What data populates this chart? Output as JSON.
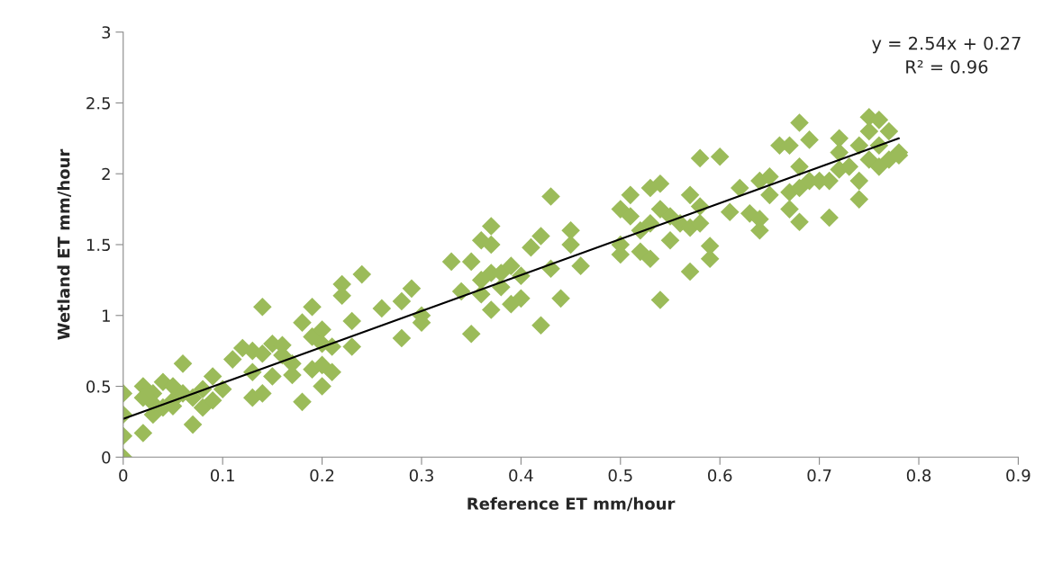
{
  "chart_data": {
    "type": "scatter",
    "xlabel": "Reference ET mm/hour",
    "ylabel": "Wetland ET mm/hour",
    "xlim": [
      0,
      0.9
    ],
    "xticks": [
      0,
      0.1,
      0.2,
      0.3,
      0.4,
      0.5,
      0.6,
      0.7,
      0.8,
      0.9
    ],
    "ylim": [
      0,
      3
    ],
    "yticks": [
      0,
      0.5,
      1,
      1.5,
      2,
      2.5,
      3
    ],
    "grid": false,
    "legend": false,
    "annotations": [
      "y = 2.54x + 0.27\nR² = 0.96"
    ],
    "series": [
      {
        "type": "scatter",
        "marker": "diamond",
        "color": "#9bbb59",
        "x": [
          0,
          0,
          0,
          0,
          0.02,
          0.02,
          0.02,
          0.03,
          0.03,
          0.03,
          0.04,
          0.04,
          0.05,
          0.05,
          0.05,
          0.06,
          0.06,
          0.07,
          0.07,
          0.08,
          0.08,
          0.09,
          0.09,
          0.1,
          0.11,
          0.12,
          0.13,
          0.13,
          0.13,
          0.14,
          0.14,
          0.14,
          0.15,
          0.15,
          0.16,
          0.16,
          0.17,
          0.17,
          0.18,
          0.18,
          0.19,
          0.19,
          0.19,
          0.2,
          0.2,
          0.2,
          0.2,
          0.21,
          0.21,
          0.22,
          0.22,
          0.23,
          0.23,
          0.24,
          0.26,
          0.28,
          0.28,
          0.29,
          0.3,
          0.3,
          0.33,
          0.34,
          0.35,
          0.35,
          0.36,
          0.36,
          0.36,
          0.37,
          0.37,
          0.37,
          0.37,
          0.38,
          0.38,
          0.39,
          0.39,
          0.4,
          0.4,
          0.41,
          0.42,
          0.42,
          0.43,
          0.43,
          0.44,
          0.45,
          0.45,
          0.46,
          0.5,
          0.5,
          0.5,
          0.51,
          0.51,
          0.52,
          0.52,
          0.53,
          0.53,
          0.53,
          0.54,
          0.54,
          0.54,
          0.55,
          0.55,
          0.56,
          0.57,
          0.57,
          0.57,
          0.58,
          0.58,
          0.58,
          0.59,
          0.59,
          0.6,
          0.61,
          0.62,
          0.63,
          0.64,
          0.64,
          0.64,
          0.65,
          0.65,
          0.66,
          0.67,
          0.67,
          0.67,
          0.68,
          0.68,
          0.68,
          0.68,
          0.69,
          0.69,
          0.7,
          0.71,
          0.71,
          0.72,
          0.72,
          0.72,
          0.73,
          0.74,
          0.74,
          0.74,
          0.75,
          0.75,
          0.75,
          0.76,
          0.76,
          0.76,
          0.77,
          0.77,
          0.78,
          0.78
        ],
        "values": [
          0,
          0.15,
          0.3,
          0.45,
          0.17,
          0.5,
          0.42,
          0.3,
          0.45,
          0.38,
          0.53,
          0.35,
          0.5,
          0.4,
          0.36,
          0.66,
          0.45,
          0.23,
          0.42,
          0.35,
          0.48,
          0.57,
          0.4,
          0.48,
          0.69,
          0.77,
          0.75,
          0.6,
          0.42,
          1.06,
          0.45,
          0.73,
          0.57,
          0.8,
          0.79,
          0.72,
          0.58,
          0.66,
          0.39,
          0.95,
          1.06,
          0.85,
          0.62,
          0.9,
          0.5,
          0.65,
          0.8,
          0.6,
          0.78,
          1.22,
          1.14,
          0.96,
          0.78,
          1.29,
          1.05,
          0.84,
          1.1,
          1.19,
          0.95,
          1.0,
          1.38,
          1.17,
          0.87,
          1.38,
          1.53,
          1.25,
          1.15,
          1.63,
          1.04,
          1.5,
          1.3,
          1.2,
          1.3,
          1.08,
          1.35,
          1.12,
          1.28,
          1.48,
          1.56,
          0.93,
          1.84,
          1.33,
          1.12,
          1.6,
          1.5,
          1.35,
          1.75,
          1.5,
          1.43,
          1.85,
          1.7,
          1.45,
          1.6,
          1.9,
          1.4,
          1.65,
          1.93,
          1.11,
          1.75,
          1.53,
          1.7,
          1.65,
          1.85,
          1.31,
          1.62,
          2.11,
          1.77,
          1.65,
          1.4,
          1.49,
          2.12,
          1.73,
          1.9,
          1.72,
          1.6,
          1.68,
          1.95,
          1.85,
          1.98,
          2.2,
          1.75,
          2.2,
          1.87,
          2.36,
          1.66,
          2.05,
          1.9,
          2.24,
          1.95,
          1.95,
          1.69,
          1.95,
          2.25,
          2.15,
          2.03,
          2.05,
          1.82,
          1.95,
          2.2,
          2.4,
          2.3,
          2.1,
          2.38,
          2.2,
          2.05,
          2.3,
          2.1,
          2.15,
          2.13
        ]
      },
      {
        "type": "line",
        "color": "#000000",
        "x": [
          0,
          0.78
        ],
        "values": [
          0.27,
          2.25
        ]
      }
    ]
  }
}
